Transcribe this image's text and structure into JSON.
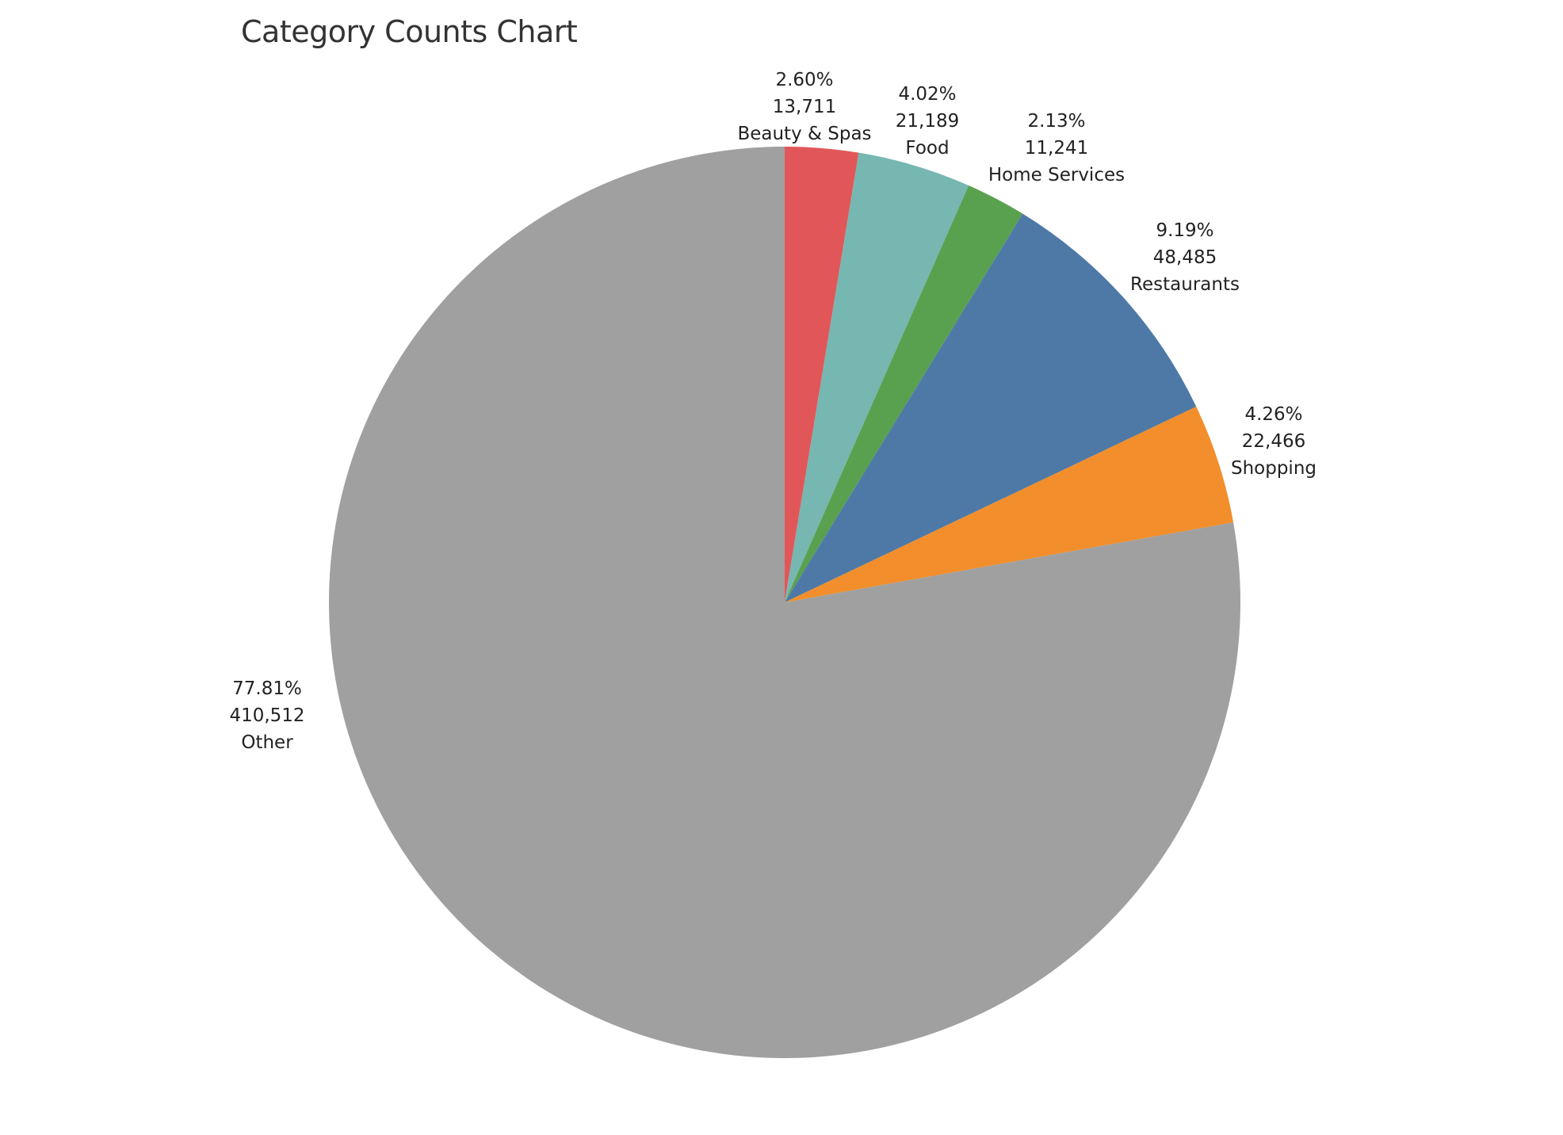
{
  "chart_data": {
    "type": "pie",
    "title": "Category Counts Chart",
    "start_angle_deg": 0,
    "direction": "clockwise",
    "slices": [
      {
        "label": "Beauty & Spas",
        "value": 13711,
        "percent_label": "2.60%",
        "value_label": "13,711",
        "color": "#e15759"
      },
      {
        "label": "Food",
        "value": 21189,
        "percent_label": "4.02%",
        "value_label": "21,189",
        "color": "#76b7b2"
      },
      {
        "label": "Home Services",
        "value": 11241,
        "percent_label": "2.13%",
        "value_label": "11,241",
        "color": "#59a14f"
      },
      {
        "label": "Restaurants",
        "value": 48485,
        "percent_label": "9.19%",
        "value_label": "48,485",
        "color": "#4e79a7"
      },
      {
        "label": "Shopping",
        "value": 22466,
        "percent_label": "4.26%",
        "value_label": "22,466",
        "color": "#f28e2b"
      },
      {
        "label": "Other",
        "value": 410512,
        "percent_label": "77.81%",
        "value_label": "410,512",
        "color": "#a0a0a0"
      }
    ]
  }
}
